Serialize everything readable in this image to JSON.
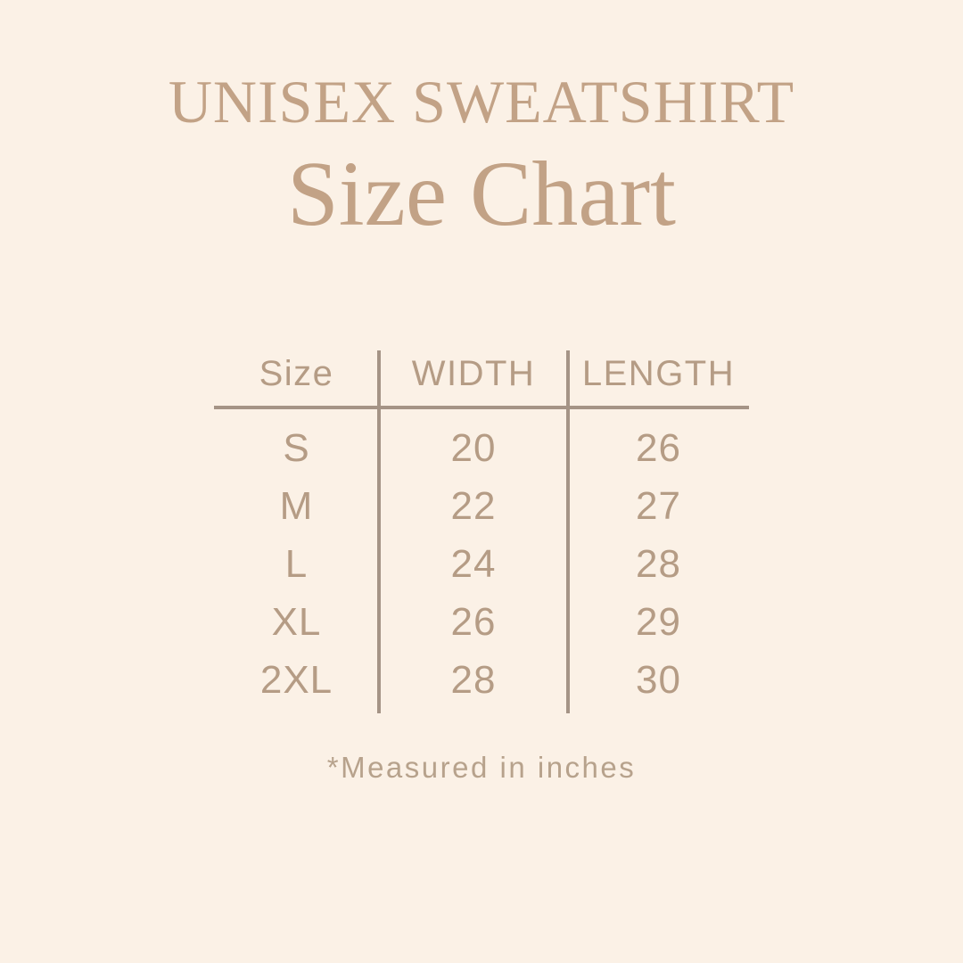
{
  "header": {
    "title": "UNISEX SWEATSHIRT",
    "subtitle": "Size Chart"
  },
  "chart_data": {
    "type": "table",
    "title": "Unisex Sweatshirt Size Chart",
    "columns": [
      "Size",
      "WIDTH",
      "LENGTH"
    ],
    "rows": [
      {
        "size": "S",
        "width": "20",
        "length": "26"
      },
      {
        "size": "M",
        "width": "22",
        "length": "27"
      },
      {
        "size": "L",
        "width": "24",
        "length": "28"
      },
      {
        "size": "XL",
        "width": "26",
        "length": "29"
      },
      {
        "size": "2XL",
        "width": "28",
        "length": "30"
      }
    ],
    "units": "inches"
  },
  "footnote": "*Measured in inches",
  "colors": {
    "background": "#fbf1e6",
    "title_text": "#c2a286",
    "table_text": "#b59c85",
    "divider_line": "#a59486"
  }
}
